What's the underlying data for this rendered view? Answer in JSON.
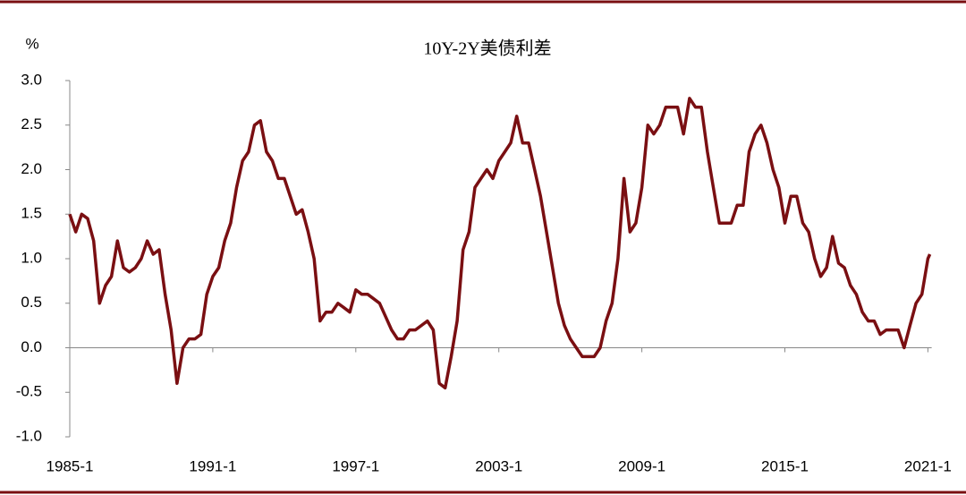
{
  "chart_data": {
    "type": "line",
    "title": "10Y-2Y美债利差",
    "y_label": "%",
    "x": [
      "1985-1",
      "1985-4",
      "1985-7",
      "1985-10",
      "1986-1",
      "1986-4",
      "1986-7",
      "1986-10",
      "1987-1",
      "1987-4",
      "1987-7",
      "1987-10",
      "1988-1",
      "1988-4",
      "1988-7",
      "1988-10",
      "1989-1",
      "1989-4",
      "1989-7",
      "1989-10",
      "1990-1",
      "1990-4",
      "1990-7",
      "1990-10",
      "1991-1",
      "1991-4",
      "1991-7",
      "1991-10",
      "1992-1",
      "1992-4",
      "1992-7",
      "1992-10",
      "1993-1",
      "1993-4",
      "1993-7",
      "1993-10",
      "1994-1",
      "1994-4",
      "1994-7",
      "1994-10",
      "1995-1",
      "1995-4",
      "1995-7",
      "1995-10",
      "1996-1",
      "1996-4",
      "1996-7",
      "1996-10",
      "1997-1",
      "1997-4",
      "1997-7",
      "1997-10",
      "1998-1",
      "1998-4",
      "1998-7",
      "1998-10",
      "1999-1",
      "1999-4",
      "1999-7",
      "1999-10",
      "2000-1",
      "2000-4",
      "2000-7",
      "2000-10",
      "2001-1",
      "2001-4",
      "2001-7",
      "2001-10",
      "2002-1",
      "2002-4",
      "2002-7",
      "2002-10",
      "2003-1",
      "2003-4",
      "2003-7",
      "2003-10",
      "2004-1",
      "2004-4",
      "2004-7",
      "2004-10",
      "2005-1",
      "2005-4",
      "2005-7",
      "2005-10",
      "2006-1",
      "2006-4",
      "2006-7",
      "2006-10",
      "2007-1",
      "2007-4",
      "2007-7",
      "2007-10",
      "2008-1",
      "2008-4",
      "2008-7",
      "2008-10",
      "2009-1",
      "2009-4",
      "2009-7",
      "2009-10",
      "2010-1",
      "2010-4",
      "2010-7",
      "2010-10",
      "2011-1",
      "2011-4",
      "2011-7",
      "2011-10",
      "2012-1",
      "2012-4",
      "2012-7",
      "2012-10",
      "2013-1",
      "2013-4",
      "2013-7",
      "2013-10",
      "2014-1",
      "2014-4",
      "2014-7",
      "2014-10",
      "2015-1",
      "2015-4",
      "2015-7",
      "2015-10",
      "2016-1",
      "2016-4",
      "2016-7",
      "2016-10",
      "2017-1",
      "2017-4",
      "2017-7",
      "2017-10",
      "2018-1",
      "2018-4",
      "2018-7",
      "2018-10",
      "2019-1",
      "2019-4",
      "2019-7",
      "2019-10",
      "2020-1",
      "2020-4",
      "2020-7",
      "2020-10",
      "2021-1",
      "2021-2"
    ],
    "series": [
      {
        "color": "#7a0f12",
        "values": [
          1.5,
          1.3,
          1.5,
          1.45,
          1.2,
          0.5,
          0.7,
          0.8,
          1.2,
          0.9,
          0.85,
          0.9,
          1.0,
          1.2,
          1.05,
          1.1,
          0.6,
          0.2,
          -0.4,
          0.0,
          0.1,
          0.1,
          0.15,
          0.6,
          0.8,
          0.9,
          1.2,
          1.4,
          1.8,
          2.1,
          2.2,
          2.5,
          2.55,
          2.2,
          2.1,
          1.9,
          1.9,
          1.7,
          1.5,
          1.55,
          1.3,
          1.0,
          0.3,
          0.4,
          0.4,
          0.5,
          0.45,
          0.4,
          0.65,
          0.6,
          0.6,
          0.55,
          0.5,
          0.35,
          0.2,
          0.1,
          0.1,
          0.2,
          0.2,
          0.25,
          0.3,
          0.2,
          -0.4,
          -0.45,
          -0.1,
          0.3,
          1.1,
          1.3,
          1.8,
          1.9,
          2.0,
          1.9,
          2.1,
          2.2,
          2.3,
          2.6,
          2.3,
          2.3,
          2.0,
          1.7,
          1.3,
          0.9,
          0.5,
          0.25,
          0.1,
          0.0,
          -0.1,
          -0.1,
          -0.1,
          0.0,
          0.3,
          0.5,
          1.0,
          1.9,
          1.3,
          1.4,
          1.8,
          2.5,
          2.4,
          2.5,
          2.7,
          2.7,
          2.7,
          2.4,
          2.8,
          2.7,
          2.7,
          2.2,
          1.8,
          1.4,
          1.4,
          1.4,
          1.6,
          1.6,
          2.2,
          2.4,
          2.5,
          2.3,
          2.0,
          1.8,
          1.4,
          1.7,
          1.7,
          1.4,
          1.3,
          1.0,
          0.8,
          0.9,
          1.25,
          0.95,
          0.9,
          0.7,
          0.6,
          0.4,
          0.3,
          0.3,
          0.15,
          0.2,
          0.2,
          0.2,
          0.0,
          0.25,
          0.5,
          0.6,
          1.0,
          1.05
        ]
      }
    ],
    "xticks": [
      "1985-1",
      "1991-1",
      "1997-1",
      "2003-1",
      "2009-1",
      "2015-1",
      "2021-1"
    ],
    "ylim": [
      -1,
      3
    ],
    "yticks": [
      {
        "value": -1,
        "label": "-1.0"
      },
      {
        "value": -0.5,
        "label": "-0.5"
      },
      {
        "value": 0,
        "label": "0.0"
      },
      {
        "value": 0.5,
        "label": "0.5"
      },
      {
        "value": 1,
        "label": "1.0"
      },
      {
        "value": 1.5,
        "label": "1.5"
      },
      {
        "value": 2,
        "label": "2.0"
      },
      {
        "value": 2.5,
        "label": "2.5"
      },
      {
        "value": 3,
        "label": "3.0"
      }
    ]
  }
}
